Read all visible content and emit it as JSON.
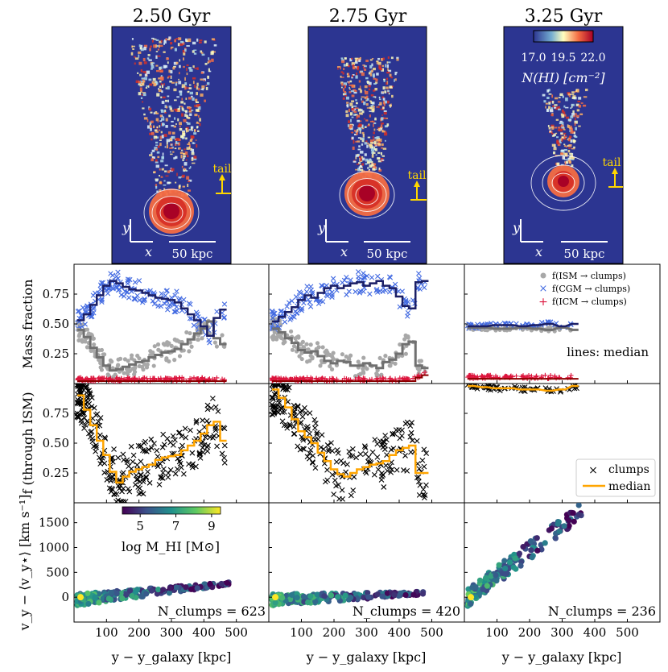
{
  "chart_data": [
    {
      "type": "image",
      "panel": "maps",
      "titles": [
        "2.50 Gyr",
        "2.75 Gyr",
        "3.25 Gyr"
      ],
      "colorbar": {
        "ticks": [
          "17.0",
          "19.5",
          "22.0"
        ],
        "label": "N(HI) [cm⁻²]"
      },
      "tail_label": "tail",
      "scalebar_label": "50 kpc",
      "axis_labels": {
        "x": "x",
        "y": "y"
      }
    },
    {
      "type": "scatter",
      "panel": "mass-fraction",
      "ylabel": "Mass fraction",
      "ylim": [
        0,
        1
      ],
      "yticks": [
        "0.25",
        "0.50",
        "0.75"
      ],
      "ytick_values": [
        0.25,
        0.5,
        0.75
      ],
      "xlim": [
        0,
        600
      ],
      "legend": [
        "f(ISM → clumps)",
        "f(CGM → clumps)",
        "f(ICM → clumps)"
      ],
      "note": "lines: median",
      "series_colors": {
        "ism": "#a8a8a8",
        "cgm": "#4169e1",
        "icm": "#dc143c",
        "ism_line": "#707070",
        "cgm_line": "#1b1f66",
        "icm_line": "#8b0000"
      },
      "medians": [
        {
          "x": [
            20,
            40,
            60,
            80,
            100,
            120,
            140,
            160,
            180,
            200,
            220,
            240,
            260,
            280,
            300,
            320,
            340,
            360,
            380,
            400,
            420,
            440,
            460
          ],
          "cgm": [
            0.53,
            0.58,
            0.66,
            0.74,
            0.82,
            0.86,
            0.84,
            0.81,
            0.79,
            0.78,
            0.76,
            0.74,
            0.72,
            0.71,
            0.7,
            0.68,
            0.63,
            0.58,
            0.53,
            0.48,
            0.4,
            0.55,
            0.62
          ],
          "ism": [
            0.45,
            0.39,
            0.3,
            0.22,
            0.15,
            0.11,
            0.12,
            0.14,
            0.16,
            0.18,
            0.19,
            0.22,
            0.24,
            0.26,
            0.27,
            0.29,
            0.33,
            0.37,
            0.42,
            0.46,
            0.52,
            0.38,
            0.33
          ],
          "icm": [
            0.02,
            0.02,
            0.02,
            0.02,
            0.02,
            0.02,
            0.02,
            0.02,
            0.02,
            0.02,
            0.02,
            0.02,
            0.02,
            0.02,
            0.02,
            0.02,
            0.02,
            0.02,
            0.02,
            0.02,
            0.02,
            0.02,
            0.02
          ]
        },
        {
          "x": [
            20,
            40,
            60,
            80,
            100,
            120,
            140,
            160,
            180,
            200,
            220,
            240,
            260,
            280,
            300,
            320,
            340,
            360,
            380,
            400,
            420,
            440,
            460,
            480
          ],
          "cgm": [
            0.52,
            0.56,
            0.6,
            0.64,
            0.7,
            0.74,
            0.72,
            0.76,
            0.8,
            0.82,
            0.8,
            0.82,
            0.84,
            0.85,
            0.82,
            0.84,
            0.86,
            0.82,
            0.8,
            0.73,
            0.65,
            0.63,
            0.85,
            0.86
          ],
          "ism": [
            0.46,
            0.43,
            0.38,
            0.34,
            0.28,
            0.26,
            0.27,
            0.23,
            0.19,
            0.17,
            0.19,
            0.18,
            0.15,
            0.15,
            0.17,
            0.15,
            0.13,
            0.18,
            0.2,
            0.25,
            0.33,
            0.35,
            0.15,
            0.13
          ],
          "icm": [
            0.02,
            0.02,
            0.02,
            0.02,
            0.02,
            0.02,
            0.02,
            0.02,
            0.02,
            0.02,
            0.02,
            0.02,
            0.02,
            0.02,
            0.02,
            0.02,
            0.02,
            0.02,
            0.02,
            0.02,
            0.02,
            0.02,
            0.05,
            0.07
          ]
        },
        {
          "x": [
            20,
            60,
            100,
            140,
            180,
            220,
            260,
            300,
            340
          ],
          "cgm": [
            0.48,
            0.48,
            0.49,
            0.49,
            0.48,
            0.49,
            0.5,
            0.48,
            0.5
          ],
          "ism": [
            0.47,
            0.47,
            0.46,
            0.46,
            0.47,
            0.46,
            0.45,
            0.47,
            0.45
          ],
          "icm": [
            0.04,
            0.04,
            0.04,
            0.04,
            0.04,
            0.04,
            0.04,
            0.04,
            0.04
          ]
        }
      ]
    },
    {
      "type": "scatter",
      "panel": "through-ism",
      "ylabel": "f (through ISM)",
      "ylim": [
        0,
        1
      ],
      "yticks": [
        "0.25",
        "0.50",
        "0.75"
      ],
      "ytick_values": [
        0.25,
        0.5,
        0.75
      ],
      "xlim": [
        0,
        600
      ],
      "legend": [
        "clumps",
        "median"
      ],
      "median_color": "#ffa500",
      "medians": [
        {
          "x": [
            20,
            40,
            60,
            80,
            100,
            120,
            140,
            160,
            180,
            200,
            220,
            240,
            260,
            280,
            300,
            320,
            340,
            360,
            380,
            400,
            420,
            440,
            460
          ],
          "y": [
            0.9,
            0.78,
            0.65,
            0.52,
            0.4,
            0.26,
            0.17,
            0.22,
            0.26,
            0.28,
            0.3,
            0.32,
            0.36,
            0.38,
            0.39,
            0.4,
            0.44,
            0.48,
            0.52,
            0.58,
            0.65,
            0.68,
            0.52
          ]
        },
        {
          "x": [
            20,
            40,
            60,
            80,
            100,
            120,
            140,
            160,
            180,
            200,
            220,
            240,
            260,
            280,
            300,
            320,
            340,
            360,
            380,
            400,
            420,
            440,
            460,
            480
          ],
          "y": [
            0.95,
            0.88,
            0.8,
            0.7,
            0.6,
            0.55,
            0.5,
            0.42,
            0.35,
            0.28,
            0.24,
            0.22,
            0.25,
            0.28,
            0.3,
            0.32,
            0.33,
            0.35,
            0.4,
            0.44,
            0.46,
            0.48,
            0.25,
            0.25
          ]
        },
        {
          "x": [
            20,
            60,
            100,
            140,
            180,
            220,
            260,
            300,
            340
          ],
          "y": [
            0.98,
            0.97,
            0.96,
            0.96,
            0.95,
            0.95,
            0.94,
            0.95,
            0.98
          ]
        }
      ]
    },
    {
      "type": "scatter",
      "panel": "velocity",
      "ylabel": "v_y − ⟨v_y⋆⟩ [km s⁻¹]",
      "yticks": [
        "0",
        "500",
        "1000",
        "1500"
      ],
      "ytick_values": [
        0,
        500,
        1000,
        1500
      ],
      "ylim": [
        -500,
        1900
      ],
      "xlim": [
        0,
        600
      ],
      "xlabel": "y − y_galaxy [kpc]",
      "xticks": [
        "100",
        "200",
        "300",
        "400",
        "500"
      ],
      "xtick_values": [
        100,
        200,
        300,
        400,
        500
      ],
      "colorbar": {
        "label": "log M_HI [M⊙]",
        "ticks": [
          "5",
          "7",
          "9"
        ],
        "range": [
          4,
          9.5
        ]
      },
      "counts": [
        "N_clumps = 623",
        "N_clumps = 420",
        "N_clumps = 236"
      ],
      "trends": [
        {
          "slope": 0.7,
          "max_x": 480,
          "n": 260
        },
        {
          "slope": 0.3,
          "max_x": 490,
          "n": 200
        },
        {
          "slope": 5.0,
          "max_x": 360,
          "n": 170
        }
      ]
    }
  ]
}
